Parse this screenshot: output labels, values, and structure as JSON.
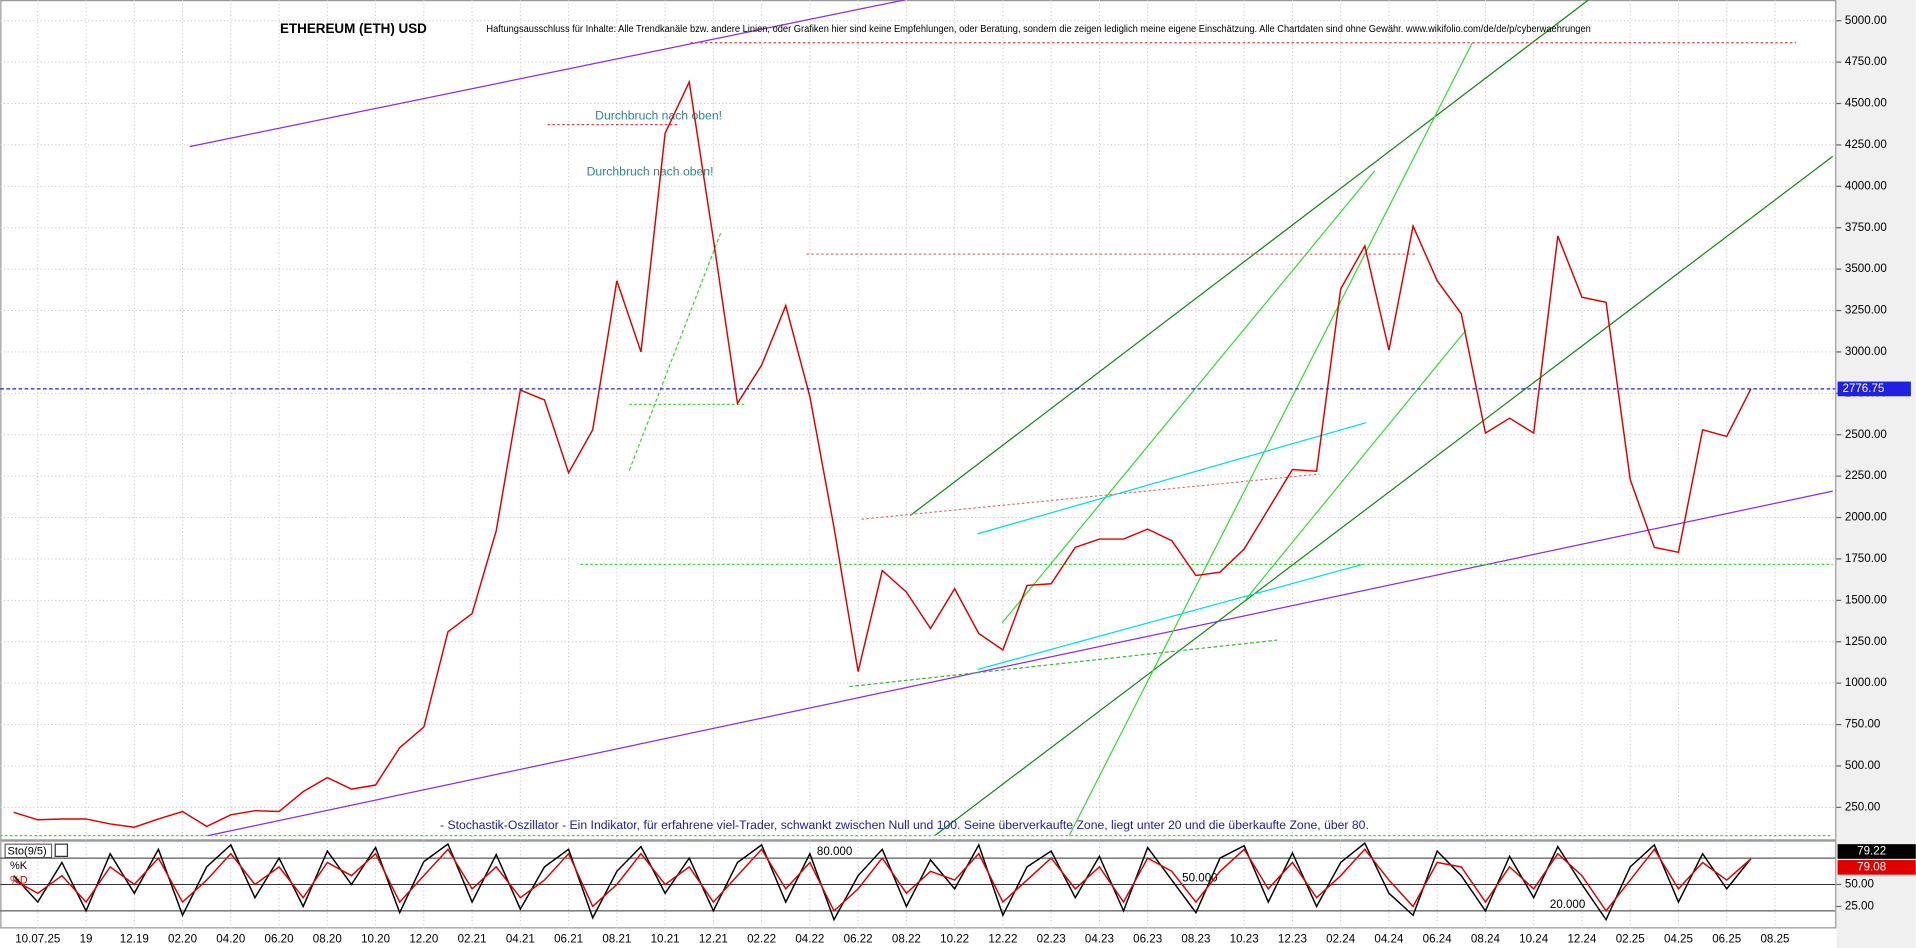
{
  "chart_data": [
    {
      "type": "line",
      "title": "ETHEREUM (ETH) USD",
      "subtitle": "Haftungsausschluss für Inhalte: Alle Trendkanäle bzw. andere Linien, oder Grafiken hier sind keine Empfehlungen, oder Beratung, sondern die zeigen lediglich meine eigene Einschätzung. Alle Chartdaten sind ohne Gewähr.  www.wikifolio.com/de/de/p/cyberwaehrungen",
      "annotations": [
        "Durchbruch nach oben!",
        "Durchbruch nach oben!",
        "- Stochastik-Oszillator - Ein Indikator, für erfahrene viel-Trader, schwankt zwischen Null und 100. Seine überverkaufte Zone, liegt unter 20 und die überkaufte Zone, über 80."
      ],
      "categories": [
        null,
        "10.07.25",
        null,
        "19",
        null,
        "12.19",
        null,
        "02.20",
        null,
        "04.20",
        null,
        "06.20",
        null,
        "08.20",
        null,
        "10.20",
        null,
        "12.20",
        null,
        "02.21",
        null,
        "04.21",
        null,
        "06.21",
        null,
        "08.21",
        null,
        "10.21",
        null,
        "12.21",
        null,
        "02.22",
        null,
        "04.22",
        null,
        "06.22",
        null,
        "08.22",
        null,
        "10.22",
        null,
        "12.22",
        null,
        "02.23",
        null,
        "04.23",
        null,
        "06.23",
        null,
        "08.23",
        null,
        "10.23",
        null,
        "12.23",
        null,
        "02.24",
        null,
        "04.24",
        null,
        "06.24",
        null,
        "08.24",
        null,
        "10.24",
        null,
        "12.24",
        null,
        "02.25",
        null,
        "04.25",
        null,
        "06.25",
        null,
        "08.25"
      ],
      "series": [
        {
          "name": "ETH",
          "color": "#e00000",
          "values": [
            220,
            175,
            180,
            180,
            150,
            130,
            180,
            225,
            135,
            205,
            230,
            225,
            345,
            430,
            360,
            385,
            610,
            735,
            1310,
            1420,
            1920,
            2770,
            2710,
            2270,
            2530,
            3430,
            3000,
            4320,
            4630,
            3680,
            2690,
            2920,
            3280,
            2730,
            1940,
            1070,
            1680,
            1550,
            1330,
            1570,
            1300,
            1200,
            1590,
            1600,
            1820,
            1870,
            1870,
            1930,
            1860,
            1650,
            1670,
            1810,
            2050,
            2290,
            2280,
            3380,
            3640,
            3010,
            3760,
            3430,
            3230,
            2510,
            2600,
            2510,
            3700,
            3330,
            3300,
            2230,
            1820,
            1790,
            2530,
            2490,
            2776.75,
            null
          ]
        }
      ],
      "ylim": [
        50,
        5125
      ],
      "yticks": [
        {
          "value": 250,
          "label": "250.00"
        },
        {
          "value": 500,
          "label": "500.00"
        },
        {
          "value": 750,
          "label": "750.00"
        },
        {
          "value": 1000,
          "label": "1000.00"
        },
        {
          "value": 1250,
          "label": "1250.00"
        },
        {
          "value": 1500,
          "label": "1500.00"
        },
        {
          "value": 1750,
          "label": "1750.00"
        },
        {
          "value": 2000,
          "label": "2000.00"
        },
        {
          "value": 2250,
          "label": "2250.00"
        },
        {
          "value": 2500,
          "label": "2500.00"
        },
        {
          "value": 2750,
          "label": "2750.00"
        },
        {
          "value": 3000,
          "label": "3000.00"
        },
        {
          "value": 3250,
          "label": "3250.00"
        },
        {
          "value": 3500,
          "label": "3500.00"
        },
        {
          "value": 3750,
          "label": "3750.00"
        },
        {
          "value": 4000,
          "label": "4000.00"
        },
        {
          "value": 4250,
          "label": "4250.00"
        },
        {
          "value": 4500,
          "label": "4500.00"
        },
        {
          "value": 4750,
          "label": "4750.00"
        },
        {
          "value": 5000,
          "label": "5000.00"
        }
      ],
      "grid": true
    },
    {
      "type": "line",
      "title": "Sto(9/5)",
      "series": [
        {
          "name": "%K",
          "color": "#000000",
          "values": [
            60,
            30,
            75,
            20,
            85,
            40,
            90,
            15,
            70,
            95,
            35,
            80,
            25,
            88,
            50,
            92,
            18,
            76,
            96,
            30,
            84,
            22,
            70,
            90,
            12,
            65,
            93,
            40,
            80,
            20,
            75,
            95,
            30,
            85,
            10,
            60,
            90,
            25,
            78,
            45,
            95,
            15,
            70,
            88,
            35,
            82,
            20,
            92,
            55,
            18,
            80,
            94,
            30,
            86,
            25,
            75,
            97,
            40,
            15,
            88,
            60,
            20,
            82,
            35,
            93,
            50,
            10,
            70,
            95,
            30,
            85,
            45,
            79.22,
            null
          ]
        },
        {
          "name": "%D",
          "color": "#e00000",
          "values": [
            55,
            40,
            60,
            30,
            70,
            50,
            80,
            30,
            55,
            85,
            50,
            70,
            35,
            75,
            60,
            85,
            30,
            60,
            90,
            45,
            70,
            35,
            55,
            85,
            25,
            50,
            85,
            50,
            70,
            30,
            60,
            90,
            45,
            75,
            20,
            45,
            80,
            40,
            65,
            55,
            85,
            30,
            55,
            80,
            45,
            70,
            30,
            80,
            65,
            30,
            65,
            90,
            45,
            75,
            35,
            60,
            90,
            55,
            25,
            75,
            70,
            30,
            70,
            45,
            85,
            60,
            20,
            55,
            90,
            45,
            75,
            55,
            79.08,
            null
          ]
        }
      ],
      "ylim": [
        0,
        100
      ],
      "yticks": [
        {
          "value": 25,
          "label": "25.00"
        },
        {
          "value": 50,
          "label": "50.00"
        }
      ],
      "levels": [
        {
          "value": 80,
          "label": "80.000"
        },
        {
          "value": 50,
          "label": "50.000"
        },
        {
          "value": 20,
          "label": "20.000"
        }
      ]
    }
  ]
}
